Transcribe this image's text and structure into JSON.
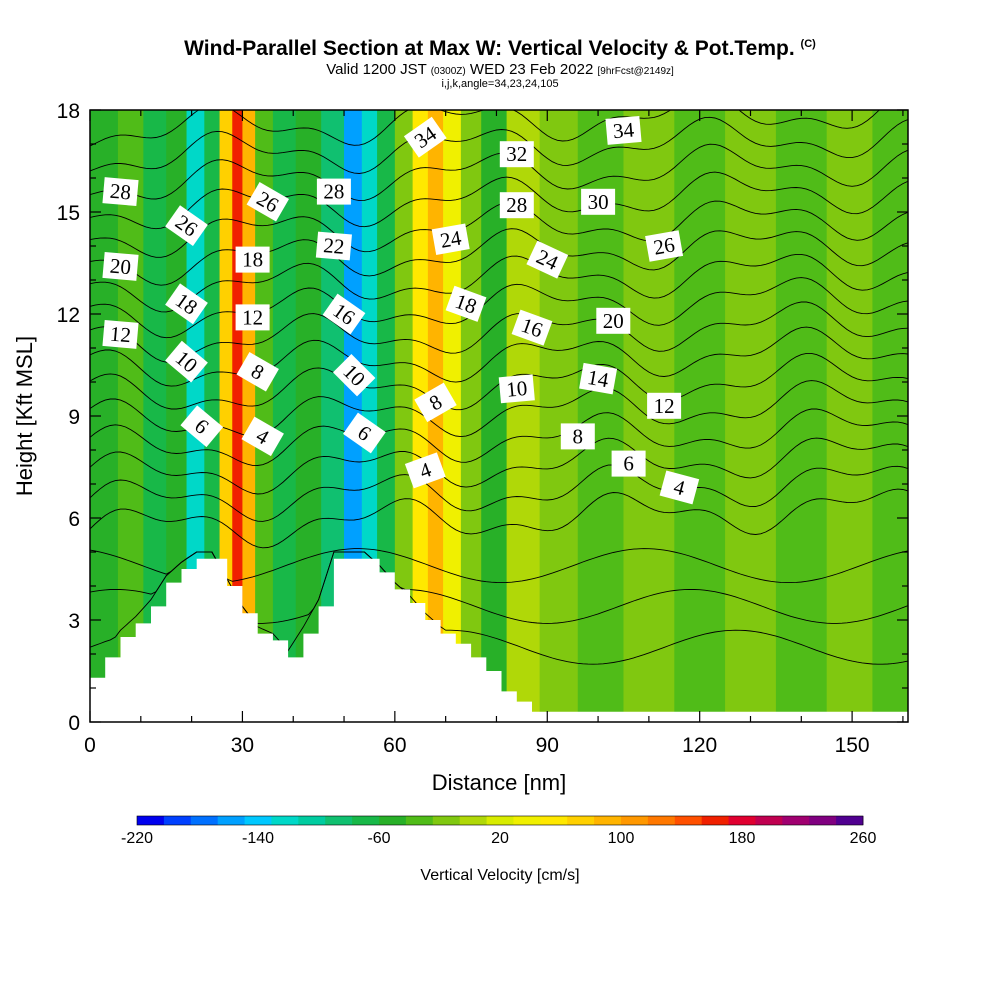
{
  "header": {
    "title_main": "Wind-Parallel Section at Max W: Vertical Velocity & Pot.Temp.",
    "title_unit": "(C)",
    "valid_prefix": "Valid 1200 JST",
    "valid_utc": "(0300Z)",
    "valid_date": "WED 23 Feb 2022",
    "forecast": "[9hrFcst@2149z]",
    "indices": "i,j,k,angle=34,23,24,105"
  },
  "chart_data": {
    "type": "contour",
    "xlabel": "Distance [nm]",
    "ylabel": "Height [Kft MSL]",
    "xlim": [
      0,
      161
    ],
    "ylim": [
      0,
      18
    ],
    "xticks": [
      0,
      30,
      60,
      90,
      120,
      150
    ],
    "yticks": [
      0,
      3,
      6,
      9,
      12,
      15,
      18
    ],
    "colorbar": {
      "label": "Vertical Velocity [cm/s]",
      "min": -220,
      "max": 260,
      "step": 20,
      "tick_values": [
        -220,
        -140,
        -60,
        20,
        100,
        180,
        260
      ],
      "colors": [
        "#0000ee",
        "#0040ff",
        "#0070ff",
        "#00a0ff",
        "#00c8ff",
        "#00d8c8",
        "#00cca0",
        "#10c070",
        "#18b848",
        "#28b028",
        "#50bc18",
        "#80c810",
        "#b0d808",
        "#d8ec00",
        "#f0f000",
        "#ffe800",
        "#ffd000",
        "#ffb400",
        "#ff9800",
        "#ff7800",
        "#ff5000",
        "#f02000",
        "#e00030",
        "#c00050",
        "#a00070",
        "#800080",
        "#500090"
      ]
    },
    "velocity_columns": [
      {
        "x": 3,
        "value": -40
      },
      {
        "x": 8,
        "value": -20
      },
      {
        "x": 13,
        "value": -60
      },
      {
        "x": 17,
        "value": -40
      },
      {
        "x": 21,
        "value": -120
      },
      {
        "x": 24,
        "value": -60
      },
      {
        "x": 27,
        "value": 100
      },
      {
        "x": 29,
        "value": 200
      },
      {
        "x": 31,
        "value": 120
      },
      {
        "x": 34,
        "value": -20
      },
      {
        "x": 38,
        "value": -60
      },
      {
        "x": 43,
        "value": -40
      },
      {
        "x": 48,
        "value": -80
      },
      {
        "x": 52,
        "value": -160
      },
      {
        "x": 55,
        "value": -120
      },
      {
        "x": 58,
        "value": -60
      },
      {
        "x": 62,
        "value": 0
      },
      {
        "x": 65,
        "value": 80
      },
      {
        "x": 68,
        "value": 120
      },
      {
        "x": 71,
        "value": 60
      },
      {
        "x": 75,
        "value": 0
      },
      {
        "x": 79,
        "value": -40
      },
      {
        "x": 85,
        "value": 20
      },
      {
        "x": 92,
        "value": 0
      },
      {
        "x": 100,
        "value": -20
      },
      {
        "x": 110,
        "value": 0
      },
      {
        "x": 120,
        "value": -20
      },
      {
        "x": 130,
        "value": 0
      },
      {
        "x": 140,
        "value": -20
      },
      {
        "x": 150,
        "value": 0
      },
      {
        "x": 158,
        "value": -20
      }
    ],
    "terrain": [
      {
        "x": 0,
        "h": 1.3
      },
      {
        "x": 3,
        "h": 1.9
      },
      {
        "x": 6,
        "h": 2.5
      },
      {
        "x": 9,
        "h": 2.9
      },
      {
        "x": 12,
        "h": 3.4
      },
      {
        "x": 15,
        "h": 4.1
      },
      {
        "x": 18,
        "h": 4.5
      },
      {
        "x": 21,
        "h": 4.8
      },
      {
        "x": 24,
        "h": 4.8
      },
      {
        "x": 27,
        "h": 4.0
      },
      {
        "x": 30,
        "h": 3.2
      },
      {
        "x": 33,
        "h": 2.6
      },
      {
        "x": 36,
        "h": 2.4
      },
      {
        "x": 39,
        "h": 1.9
      },
      {
        "x": 42,
        "h": 2.6
      },
      {
        "x": 45,
        "h": 3.4
      },
      {
        "x": 48,
        "h": 4.8
      },
      {
        "x": 51,
        "h": 4.8
      },
      {
        "x": 54,
        "h": 4.8
      },
      {
        "x": 57,
        "h": 4.4
      },
      {
        "x": 60,
        "h": 3.9
      },
      {
        "x": 63,
        "h": 3.5
      },
      {
        "x": 66,
        "h": 3.0
      },
      {
        "x": 69,
        "h": 2.6
      },
      {
        "x": 72,
        "h": 2.3
      },
      {
        "x": 75,
        "h": 1.9
      },
      {
        "x": 78,
        "h": 1.5
      },
      {
        "x": 81,
        "h": 0.9
      },
      {
        "x": 84,
        "h": 0.6
      },
      {
        "x": 87,
        "h": 0.3
      },
      {
        "x": 90,
        "h": 0.3
      },
      {
        "x": 161,
        "h": 0.3
      }
    ],
    "theta_levels": [
      4,
      6,
      8,
      10,
      12,
      14,
      16,
      18,
      20,
      22,
      24,
      26,
      28,
      30,
      32,
      34
    ],
    "contour_labels": [
      {
        "text": "28",
        "x": 6,
        "y": 15.6,
        "angle": 5
      },
      {
        "text": "26",
        "x": 19,
        "y": 14.6,
        "angle": 35
      },
      {
        "text": "20",
        "x": 6,
        "y": 13.4,
        "angle": 5
      },
      {
        "text": "18",
        "x": 19,
        "y": 12.3,
        "angle": 35
      },
      {
        "text": "12",
        "x": 6,
        "y": 11.4,
        "angle": 5
      },
      {
        "text": "10",
        "x": 19,
        "y": 10.6,
        "angle": 40
      },
      {
        "text": "6",
        "x": 22,
        "y": 8.7,
        "angle": 40
      },
      {
        "text": "26",
        "x": 35,
        "y": 15.3,
        "angle": 30
      },
      {
        "text": "18",
        "x": 32,
        "y": 13.6,
        "angle": 0
      },
      {
        "text": "12",
        "x": 32,
        "y": 11.9,
        "angle": 0
      },
      {
        "text": "8",
        "x": 33,
        "y": 10.3,
        "angle": 30
      },
      {
        "text": "4",
        "x": 34,
        "y": 8.4,
        "angle": 30
      },
      {
        "text": "28",
        "x": 48,
        "y": 15.6,
        "angle": 0
      },
      {
        "text": "22",
        "x": 48,
        "y": 14.0,
        "angle": 5
      },
      {
        "text": "16",
        "x": 50,
        "y": 12.0,
        "angle": 35
      },
      {
        "text": "10",
        "x": 52,
        "y": 10.2,
        "angle": 45
      },
      {
        "text": "6",
        "x": 54,
        "y": 8.5,
        "angle": 35
      },
      {
        "text": "34",
        "x": 66,
        "y": 17.2,
        "angle": -35
      },
      {
        "text": "24",
        "x": 71,
        "y": 14.2,
        "angle": -10
      },
      {
        "text": "18",
        "x": 74,
        "y": 12.3,
        "angle": 20
      },
      {
        "text": "8",
        "x": 68,
        "y": 9.4,
        "angle": -30
      },
      {
        "text": "4",
        "x": 66,
        "y": 7.4,
        "angle": -20
      },
      {
        "text": "32",
        "x": 84,
        "y": 16.7,
        "angle": 0
      },
      {
        "text": "28",
        "x": 84,
        "y": 15.2,
        "angle": 0
      },
      {
        "text": "24",
        "x": 90,
        "y": 13.6,
        "angle": 25
      },
      {
        "text": "16",
        "x": 87,
        "y": 11.6,
        "angle": 20
      },
      {
        "text": "10",
        "x": 84,
        "y": 9.8,
        "angle": -5
      },
      {
        "text": "34",
        "x": 105,
        "y": 17.4,
        "angle": -5
      },
      {
        "text": "30",
        "x": 100,
        "y": 15.3,
        "angle": 0
      },
      {
        "text": "26",
        "x": 113,
        "y": 14.0,
        "angle": -10
      },
      {
        "text": "20",
        "x": 103,
        "y": 11.8,
        "angle": 0
      },
      {
        "text": "14",
        "x": 100,
        "y": 10.1,
        "angle": 10
      },
      {
        "text": "12",
        "x": 113,
        "y": 9.3,
        "angle": 0
      },
      {
        "text": "8",
        "x": 96,
        "y": 8.4,
        "angle": 0
      },
      {
        "text": "6",
        "x": 106,
        "y": 7.6,
        "angle": 0
      },
      {
        "text": "4",
        "x": 116,
        "y": 6.9,
        "angle": 15
      }
    ]
  }
}
